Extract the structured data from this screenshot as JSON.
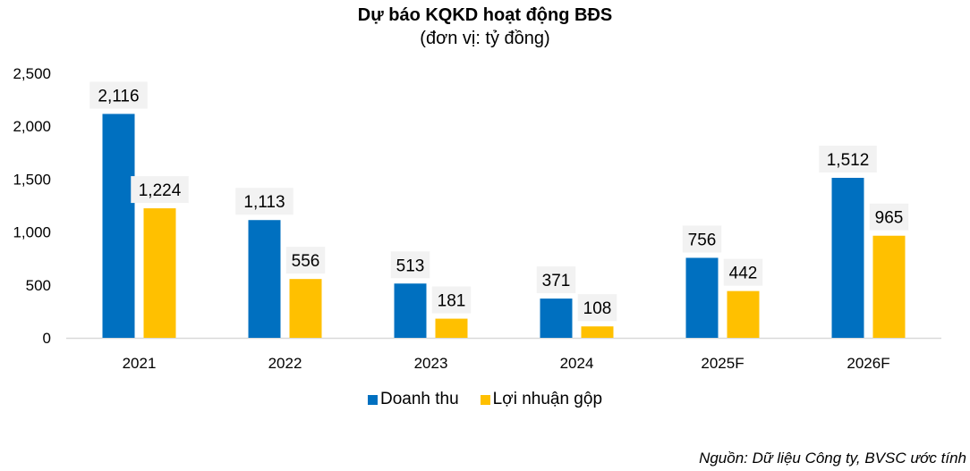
{
  "chart_data": {
    "type": "bar",
    "title": "Dự báo KQKD hoạt động BĐS",
    "subtitle": "(đơn vị: tỷ đồng)",
    "categories": [
      "2021",
      "2022",
      "2023",
      "2024",
      "2025F",
      "2026F"
    ],
    "series": [
      {
        "name": "Doanh thu",
        "color": "#0070C0",
        "values": [
          2116,
          1113,
          513,
          371,
          756,
          1512
        ],
        "labels": [
          "2,116",
          "1,113",
          "513",
          "371",
          "756",
          "1,512"
        ]
      },
      {
        "name": "Lợi nhuận gộp",
        "color": "#FFC000",
        "values": [
          1224,
          556,
          181,
          108,
          442,
          965
        ],
        "labels": [
          "1,224",
          "556",
          "181",
          "108",
          "442",
          "965"
        ]
      }
    ],
    "ylim": [
      0,
      2500
    ],
    "yticks": [
      0,
      500,
      1000,
      1500,
      2000,
      2500
    ],
    "ytick_labels": [
      "0",
      "500",
      "1,000",
      "1,500",
      "2,000",
      "2,500"
    ],
    "xlabel": "",
    "ylabel": "",
    "grid": false,
    "legend_position": "bottom",
    "source": "Nguồn: Dữ liệu Công ty, BVSC ước tính",
    "label_bg_color": "#F2F2F2",
    "axis_color": "#D9D9D9"
  }
}
